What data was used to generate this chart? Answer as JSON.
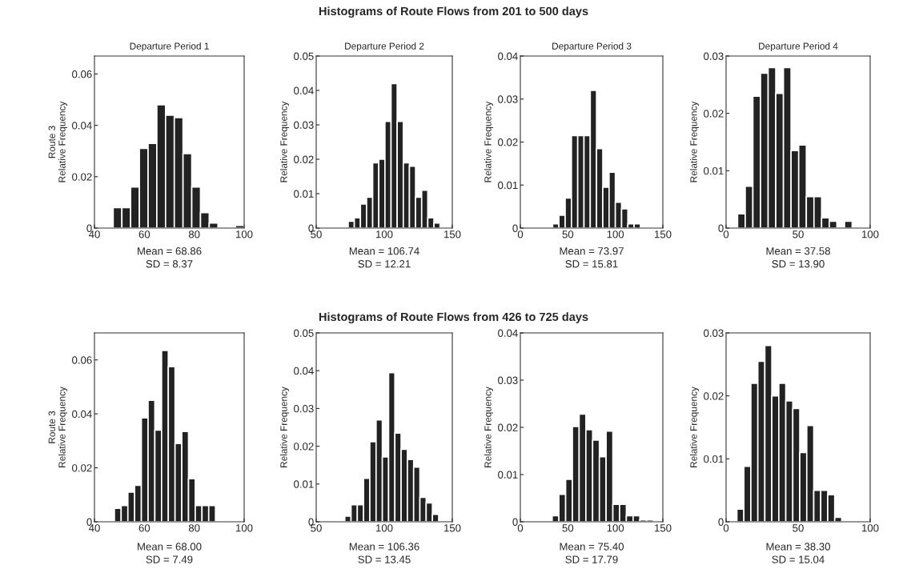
{
  "chart_data": [
    {
      "type": "histogram",
      "title": "Departure Period 1",
      "ylabel": "Route 3\nRelative Frequency",
      "color": "#222222",
      "bins": [
        47.5,
        51,
        54.5,
        58,
        61.5,
        65,
        68.5,
        72,
        75.5,
        79,
        82.5,
        86,
        89.5,
        93,
        96.5,
        100
      ],
      "values": [
        0.008,
        0.008,
        0.016,
        0.031,
        0.033,
        0.048,
        0.044,
        0.043,
        0.029,
        0.016,
        0.006,
        0.002,
        0,
        0,
        0.001
      ],
      "xlim": [
        40,
        100
      ],
      "ylim": [
        0,
        0.067
      ],
      "xticks": [
        40,
        60,
        80,
        100
      ],
      "yticks": [
        0,
        0.02,
        0.04,
        0.06
      ],
      "grid": false,
      "annotations": [
        "Histograms of Route Flows from 201 to 500 days",
        "Mean = 68.86",
        "SD = 8.37"
      ]
    },
    {
      "type": "histogram",
      "title": "Departure Period 2",
      "ylabel": "Relative Frequency",
      "color": "#222222",
      "bins": [
        73.5,
        78,
        82.5,
        87,
        91.5,
        96,
        100.5,
        105,
        109.5,
        114,
        118.5,
        123,
        127.5,
        132,
        136.5,
        141
      ],
      "values": [
        0.002,
        0.003,
        0.007,
        0.009,
        0.019,
        0.02,
        0.031,
        0.042,
        0.031,
        0.019,
        0.018,
        0.009,
        0.011,
        0.003,
        0.0015
      ],
      "xlim": [
        50,
        150
      ],
      "ylim": [
        0,
        0.05
      ],
      "xticks": [
        50,
        100,
        150
      ],
      "yticks": [
        0,
        0.01,
        0.02,
        0.03,
        0.04,
        0.05
      ],
      "grid": false,
      "annotations": [
        "Mean = 106.74",
        "SD = 12.21"
      ]
    },
    {
      "type": "histogram",
      "title": "Departure Period 3",
      "ylabel": "Relative Frequency",
      "color": "#222222",
      "bins": [
        34,
        40.6,
        47.2,
        53.8,
        60.4,
        67,
        73.6,
        80.2,
        86.8,
        93.4,
        100,
        106.6,
        113.2,
        119.8,
        126.4
      ],
      "values": [
        0.001,
        0.003,
        0.007,
        0.0215,
        0.0215,
        0.0215,
        0.032,
        0.0185,
        0.0095,
        0.013,
        0.006,
        0.0045,
        0.001,
        0.001
      ],
      "xlim": [
        0,
        150
      ],
      "ylim": [
        0,
        0.04
      ],
      "xticks": [
        0,
        50,
        100,
        150
      ],
      "yticks": [
        0,
        0.01,
        0.02,
        0.03,
        0.04
      ],
      "grid": false,
      "annotations": [
        "Mean = 73.97",
        "SD = 15.81"
      ]
    },
    {
      "type": "histogram",
      "title": "Departure Period 4",
      "ylabel": "Relative Frequency",
      "color": "#222222",
      "bins": [
        8,
        13.3,
        18.6,
        23.9,
        29.2,
        34.5,
        39.8,
        45.1,
        50.4,
        55.7,
        61,
        66.3,
        71.6,
        76.9,
        82.2,
        87.5
      ],
      "values": [
        0.0025,
        0.0073,
        0.023,
        0.027,
        0.028,
        0.0235,
        0.028,
        0.0135,
        0.0145,
        0.0055,
        0.0055,
        0.0018,
        0.0012,
        0,
        0.0012
      ],
      "xlim": [
        0,
        100
      ],
      "ylim": [
        0,
        0.03
      ],
      "xticks": [
        0,
        50,
        100
      ],
      "yticks": [
        0,
        0.01,
        0.02,
        0.03
      ],
      "grid": false,
      "annotations": [
        "Mean = 37.58",
        "SD = 13.90"
      ]
    },
    {
      "type": "histogram",
      "ylabel": "Route 3\nRelative Frequency",
      "color": "#222222",
      "bins": [
        48,
        50.7,
        53.4,
        56.1,
        58.8,
        61.5,
        64.2,
        66.9,
        69.6,
        72.3,
        75,
        77.7,
        80.4,
        83.1,
        85.8,
        88.5
      ],
      "values": [
        0.005,
        0.006,
        0.011,
        0.0135,
        0.0385,
        0.045,
        0.034,
        0.0635,
        0.0575,
        0.029,
        0.0335,
        0.016,
        0.006,
        0.006,
        0.006
      ],
      "xlim": [
        40,
        100
      ],
      "ylim": [
        0,
        0.07
      ],
      "xticks": [
        40,
        60,
        80,
        100
      ],
      "yticks": [
        0,
        0.02,
        0.04,
        0.06
      ],
      "grid": false,
      "annotations": [
        "Histograms of Route Flows from 426 to 725 days",
        "Mean = 68.00",
        "SD = 7.49"
      ]
    },
    {
      "type": "histogram",
      "ylabel": "Relative Frequency",
      "color": "#222222",
      "bins": [
        71,
        75.6,
        80.2,
        84.8,
        89.4,
        94,
        98.6,
        103.2,
        107.8,
        112.4,
        117,
        121.6,
        126.2,
        130.8,
        135.4,
        140
      ],
      "values": [
        0.0015,
        0.0045,
        0.0045,
        0.0115,
        0.0212,
        0.027,
        0.0172,
        0.0395,
        0.0235,
        0.0192,
        0.0165,
        0.0145,
        0.0065,
        0.005,
        0.002
      ],
      "xlim": [
        50,
        150
      ],
      "ylim": [
        0,
        0.05
      ],
      "xticks": [
        50,
        100,
        150
      ],
      "yticks": [
        0,
        0.01,
        0.02,
        0.03,
        0.04,
        0.05
      ],
      "grid": false,
      "annotations": [
        "Mean = 106.36",
        "SD = 13.45"
      ]
    },
    {
      "type": "histogram",
      "ylabel": "Relative Frequency",
      "color": "#222222",
      "bins": [
        33.5,
        40.6,
        47.7,
        54.8,
        61.9,
        69,
        76.1,
        83.2,
        90.3,
        97.4,
        104.5,
        111.6,
        118.7,
        125.8,
        132.9,
        140
      ],
      "values": [
        0.0013,
        0.0058,
        0.009,
        0.0202,
        0.0228,
        0.0195,
        0.0173,
        0.0138,
        0.0192,
        0.0037,
        0.0037,
        0.0013,
        0.0013,
        0.0004,
        0.0004
      ],
      "xlim": [
        0,
        150
      ],
      "ylim": [
        0,
        0.04
      ],
      "xticks": [
        0,
        50,
        100,
        150
      ],
      "yticks": [
        0,
        0.01,
        0.02,
        0.03,
        0.04
      ],
      "grid": false,
      "annotations": [
        "Mean = 75.40",
        "SD = 17.79"
      ]
    },
    {
      "type": "histogram",
      "ylabel": "Relative Frequency",
      "color": "#222222",
      "bins": [
        7.5,
        12.35,
        17.2,
        22.05,
        26.9,
        31.75,
        36.6,
        41.45,
        46.3,
        51.15,
        56,
        60.85,
        65.7,
        70.55,
        75.4,
        80.25
      ],
      "values": [
        0.002,
        0.0088,
        0.022,
        0.0255,
        0.028,
        0.02,
        0.022,
        0.0192,
        0.018,
        0.011,
        0.0153,
        0.005,
        0.005,
        0.0043,
        0.0007
      ],
      "xlim": [
        0,
        100
      ],
      "ylim": [
        0,
        0.03
      ],
      "xticks": [
        0,
        50,
        100
      ],
      "yticks": [
        0,
        0.01,
        0.02,
        0.03
      ],
      "grid": false,
      "annotations": [
        "Mean = 38.30",
        "SD = 15.04"
      ]
    }
  ]
}
